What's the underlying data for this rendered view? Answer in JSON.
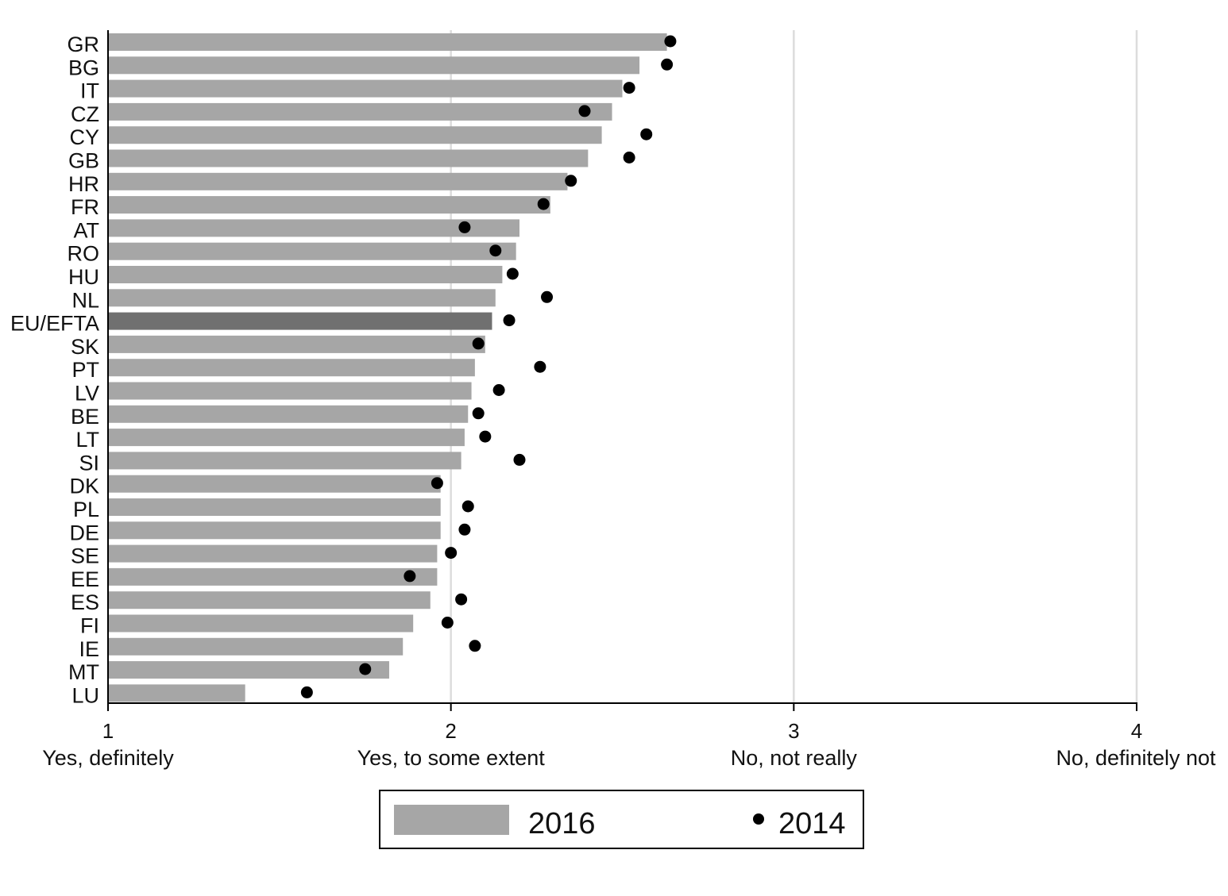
{
  "chart_data": {
    "type": "bar",
    "orientation": "horizontal",
    "categories": [
      "GR",
      "BG",
      "IT",
      "CZ",
      "CY",
      "GB",
      "HR",
      "FR",
      "AT",
      "RO",
      "HU",
      "NL",
      "EU/EFTA",
      "SK",
      "PT",
      "LV",
      "BE",
      "LT",
      "SI",
      "DK",
      "PL",
      "DE",
      "SE",
      "EE",
      "ES",
      "FI",
      "IE",
      "MT",
      "LU"
    ],
    "highlight_category": "EU/EFTA",
    "series": [
      {
        "name": "2016",
        "mark": "bar",
        "values": [
          2.63,
          2.55,
          2.5,
          2.47,
          2.44,
          2.4,
          2.34,
          2.29,
          2.2,
          2.19,
          2.15,
          2.13,
          2.12,
          2.1,
          2.07,
          2.06,
          2.05,
          2.04,
          2.03,
          1.97,
          1.97,
          1.97,
          1.96,
          1.96,
          1.94,
          1.89,
          1.86,
          1.82,
          1.4
        ]
      },
      {
        "name": "2014",
        "mark": "dot",
        "values": [
          2.64,
          2.63,
          2.52,
          2.39,
          2.57,
          2.52,
          2.35,
          2.27,
          2.04,
          2.13,
          2.18,
          2.28,
          2.17,
          2.08,
          2.26,
          2.14,
          2.08,
          2.1,
          2.2,
          1.96,
          2.05,
          2.04,
          2.0,
          1.88,
          2.03,
          1.99,
          2.07,
          1.75,
          1.58
        ]
      }
    ],
    "xlim": [
      1,
      4
    ],
    "xticks": [
      {
        "value": 1,
        "label": "1",
        "sublabel": "Yes, definitely"
      },
      {
        "value": 2,
        "label": "2",
        "sublabel": "Yes, to some extent"
      },
      {
        "value": 3,
        "label": "3",
        "sublabel": "No, not really"
      },
      {
        "value": 4,
        "label": "4",
        "sublabel": "No, definitely not"
      }
    ],
    "grid": "vertical",
    "legend": {
      "placement": "bottom-center",
      "entries": [
        "2016",
        "2014"
      ]
    },
    "colors": {
      "bar": "#a6a6a6",
      "highlight_bar": "#707070",
      "dot": "#000000",
      "grid": "#dcdcdc",
      "axis": "#000000"
    }
  }
}
